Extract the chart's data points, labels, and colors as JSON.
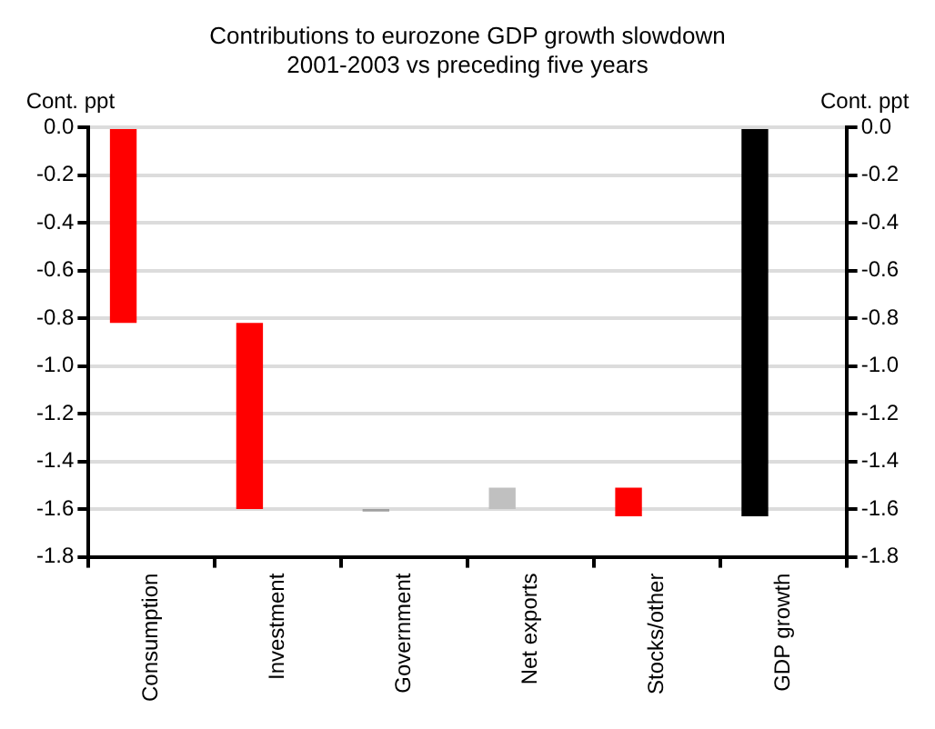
{
  "chart_data": {
    "type": "bar",
    "title": "Contributions to eurozone GDP growth slowdown",
    "subtitle": "2001-2003 vs preceding five years",
    "ylabel": "Cont. ppt",
    "y2label": "Cont. ppt",
    "categories": [
      "Consumption",
      "Investment",
      "Government",
      "Net exports",
      "Stocks/other",
      "GDP growth"
    ],
    "values": [
      -0.82,
      -0.78,
      -0.01,
      0.09,
      -0.12,
      -1.63
    ],
    "base": [
      0,
      -0.82,
      -1.6,
      -1.6,
      -1.51,
      0
    ],
    "colors": [
      "#ff0000",
      "#ff0000",
      "#a0a0a0",
      "#c0c0c0",
      "#ff0000",
      "#000000"
    ],
    "ylim": [
      -1.8,
      0
    ],
    "yticks": [
      {
        "value": 0,
        "label": "0.0"
      },
      {
        "value": -0.2,
        "label": "-0.2"
      },
      {
        "value": -0.4,
        "label": "-0.4"
      },
      {
        "value": -0.6,
        "label": "-0.6"
      },
      {
        "value": -0.8,
        "label": "-0.8"
      },
      {
        "value": -1,
        "label": "-1.0"
      },
      {
        "value": -1.2,
        "label": "-1.2"
      },
      {
        "value": -1.4,
        "label": "-1.4"
      },
      {
        "value": -1.6,
        "label": "-1.6"
      },
      {
        "value": -1.8,
        "label": "-1.8"
      }
    ],
    "y2lim": [
      -1.8,
      0
    ],
    "y2ticks": [
      {
        "value": 0,
        "label": "0.0"
      },
      {
        "value": -0.2,
        "label": "-0.2"
      },
      {
        "value": -0.4,
        "label": "-0.4"
      },
      {
        "value": -0.6,
        "label": "-0.6"
      },
      {
        "value": -0.8,
        "label": "-0.8"
      },
      {
        "value": -1,
        "label": "-1.0"
      },
      {
        "value": -1.2,
        "label": "-1.2"
      },
      {
        "value": -1.4,
        "label": "-1.4"
      },
      {
        "value": -1.6,
        "label": "-1.6"
      },
      {
        "value": -1.8,
        "label": "-1.8"
      }
    ],
    "grid": "y",
    "legend": false
  }
}
